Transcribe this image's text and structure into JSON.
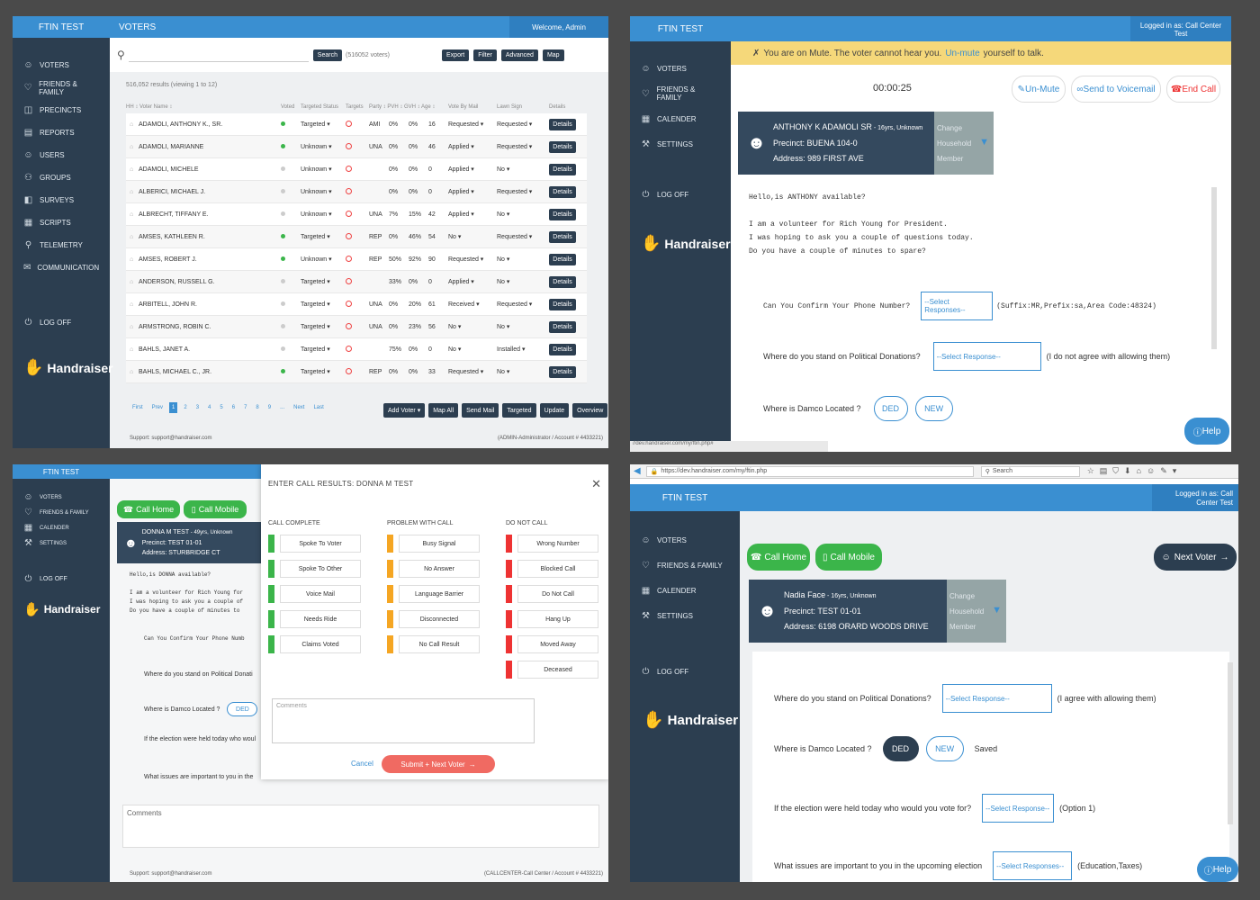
{
  "p1": {
    "brand": "FTIN TEST",
    "title": "VOTERS",
    "welcome": "Welcome, Admin",
    "nav": [
      {
        "label": "VOTERS",
        "icon": "voters-icon",
        "glyph": "☺"
      },
      {
        "label": "FRIENDS & FAMILY",
        "icon": "heart-icon",
        "glyph": "♡"
      },
      {
        "label": "PRECINCTS",
        "icon": "precincts-icon",
        "glyph": "◫"
      },
      {
        "label": "REPORTS",
        "icon": "reports-icon",
        "glyph": "▤"
      },
      {
        "label": "USERS",
        "icon": "user-icon",
        "glyph": "☺"
      },
      {
        "label": "GROUPS",
        "icon": "groups-icon",
        "glyph": "⚇"
      },
      {
        "label": "SURVEYS",
        "icon": "surveys-icon",
        "glyph": "◧"
      },
      {
        "label": "SCRIPTS",
        "icon": "scripts-icon",
        "glyph": "▦"
      },
      {
        "label": "TELEMETRY",
        "icon": "telemetry-icon",
        "glyph": "⚲"
      },
      {
        "label": "COMMUNICATION",
        "icon": "communication-icon",
        "glyph": "✉"
      }
    ],
    "logoff": "LOG OFF",
    "logo": "Handraiser",
    "search_btn": "Search",
    "voter_count": "(516052 voters)",
    "actions": [
      "Export",
      "Filter",
      "Advanced",
      "Map"
    ],
    "results_text": "516,052 results (viewing 1 to 12)",
    "columns": [
      "HH ↕ Voter Name ↕",
      "Voted",
      "Targeted Status",
      "Targets",
      "Party ↕ PVH ↕ GVH ↕ Age ↕",
      "Vote By Mail",
      "Lawn Sign",
      "Details"
    ],
    "rows": [
      {
        "name": "ADAMOLI, ANTHONY K., SR.",
        "voted": "green",
        "status": "Targeted",
        "party": "AMI",
        "pvh": "0%",
        "gvh": "0%",
        "age": "16",
        "vbm": "Requested",
        "lawn": "Requested"
      },
      {
        "name": "ADAMOLI, MARIANNE",
        "voted": "green",
        "status": "Unknown",
        "party": "UNA",
        "pvh": "0%",
        "gvh": "0%",
        "age": "46",
        "vbm": "Applied",
        "lawn": "Requested"
      },
      {
        "name": "ADAMOLI, MICHELE",
        "voted": "grey",
        "status": "Unknown",
        "party": "",
        "pvh": "0%",
        "gvh": "0%",
        "age": "0",
        "vbm": "Applied",
        "lawn": "No"
      },
      {
        "name": "ALBERICI, MICHAEL J.",
        "voted": "grey",
        "status": "Unknown",
        "party": "",
        "pvh": "0%",
        "gvh": "0%",
        "age": "0",
        "vbm": "Applied",
        "lawn": "Requested"
      },
      {
        "name": "ALBRECHT, TIFFANY E.",
        "voted": "grey",
        "status": "Unknown",
        "party": "UNA",
        "pvh": "7%",
        "gvh": "15%",
        "age": "42",
        "vbm": "Applied",
        "lawn": "No"
      },
      {
        "name": "AMSES, KATHLEEN R.",
        "voted": "green",
        "status": "Targeted",
        "party": "REP",
        "pvh": "0%",
        "gvh": "46%",
        "age": "54",
        "vbm": "No",
        "lawn": "Requested"
      },
      {
        "name": "AMSES, ROBERT J.",
        "voted": "green",
        "status": "Unknown",
        "party": "REP",
        "pvh": "50%",
        "gvh": "92%",
        "age": "90",
        "vbm": "Requested",
        "lawn": "No"
      },
      {
        "name": "ANDERSON, RUSSELL G.",
        "voted": "grey",
        "status": "Targeted",
        "party": "",
        "pvh": "33%",
        "gvh": "0%",
        "age": "0",
        "vbm": "Applied",
        "lawn": "No"
      },
      {
        "name": "ARBITELL, JOHN R.",
        "voted": "grey",
        "status": "Targeted",
        "party": "UNA",
        "pvh": "0%",
        "gvh": "20%",
        "age": "61",
        "vbm": "Received",
        "lawn": "Requested"
      },
      {
        "name": "ARMSTRONG, ROBIN C.",
        "voted": "grey",
        "status": "Targeted",
        "party": "UNA",
        "pvh": "0%",
        "gvh": "23%",
        "age": "56",
        "vbm": "No",
        "lawn": "No"
      },
      {
        "name": "BAHLS, JANET A.",
        "voted": "grey",
        "status": "Targeted",
        "party": "",
        "pvh": "75%",
        "gvh": "0%",
        "age": "0",
        "vbm": "No",
        "lawn": "Installed"
      },
      {
        "name": "BAHLS, MICHAEL C., JR.",
        "voted": "green",
        "status": "Targeted",
        "party": "REP",
        "pvh": "0%",
        "gvh": "0%",
        "age": "33",
        "vbm": "Requested",
        "lawn": "No"
      }
    ],
    "details_label": "Details",
    "pagination": [
      "First",
      "Prev",
      "1",
      "2",
      "3",
      "4",
      "5",
      "6",
      "7",
      "8",
      "9",
      "...",
      "Next",
      "Last"
    ],
    "bottom_actions": [
      "Add Voter ▾",
      "Map All",
      "Send Mail",
      "Targeted",
      "Update",
      "Overview"
    ],
    "support": "Support: support@handraiser.com",
    "account": "(ADMIN-Administrator / Account # 4433221)"
  },
  "p2": {
    "brand": "FTIN TEST",
    "logged_in": "Logged in as: Call Center Test",
    "nav": [
      {
        "label": "VOTERS",
        "icon": "voters-icon",
        "glyph": "☺"
      },
      {
        "label": "FRIENDS & FAMILY",
        "icon": "heart-icon",
        "glyph": "♡"
      },
      {
        "label": "CALENDER",
        "icon": "calendar-icon",
        "glyph": "▦"
      },
      {
        "label": "SETTINGS",
        "icon": "wrench-icon",
        "glyph": "⚒"
      }
    ],
    "logoff": "LOG OFF",
    "logo": "Handraiser",
    "mute_msg": "You are on Mute. The voter cannot hear you.",
    "unmute_link": "Un-mute",
    "mute_tail": "yourself to talk.",
    "timer": "00:00:25",
    "unmute_btn": "Un-Mute",
    "voicemail_btn": "Send to Voicemail",
    "endcall_btn": "End Call",
    "voter_name": "ANTHONY K ADAMOLI SR",
    "voter_meta": " - 16yrs, Unknown",
    "precinct": "Precinct: BUENA 104-0",
    "address": "Address: 989 FIRST AVE",
    "household": [
      "Change",
      "Household",
      "Member"
    ],
    "script_lines": [
      "Hello,is ANTHONY available?",
      "",
      "I am a volunteer for Rich Young for President.",
      "I was hoping to ask you a couple of questions today.",
      "Do you have a couple of minutes to spare?"
    ],
    "q1": "Can You Confirm Your Phone Number?",
    "q1_select": "--Select Responses--",
    "q1_note": "(Suffix:MR,Prefix:sa,Area Code:48324)",
    "q2": "Where do you stand on Political Donations?",
    "q2_select": "--Select Response--",
    "q2_note": "(I do not agree with allowing them)",
    "q3": "Where is Damco Located ?",
    "q3_opts": [
      "DED",
      "NEW"
    ],
    "help": "Help",
    "url_hint": "//dev.handraiser.com/my/ftin.php#"
  },
  "p3": {
    "brand": "FTIN TEST",
    "nav": [
      {
        "label": "VOTERS",
        "icon": "voters-icon",
        "glyph": "☺"
      },
      {
        "label": "FRIENDS & FAMILY",
        "icon": "heart-icon",
        "glyph": "♡"
      },
      {
        "label": "CALENDER",
        "icon": "calendar-icon",
        "glyph": "▦"
      },
      {
        "label": "SETTINGS",
        "icon": "wrench-icon",
        "glyph": "⚒"
      }
    ],
    "logoff": "LOG OFF",
    "logo": "Handraiser",
    "call_home": "Call Home",
    "call_mobile": "Call Mobile",
    "voter_name": "DONNA M TEST",
    "voter_meta": " - 49yrs, Unknown",
    "precinct": "Precinct: TEST 01-01",
    "address": "Address: STURBRIDGE CT",
    "script_lines": [
      "Hello,is DONNA available?",
      "",
      "I am a volunteer for Rich Young for",
      "I was hoping to ask you a couple of",
      "Do you have a couple of minutes to"
    ],
    "q1": "Can You Confirm Your Phone Numb",
    "q2": "Where do you stand on Political Donati",
    "q3": "Where is Damco Located ?",
    "q3_opt": "DED",
    "q4": "If the election were held today who woul",
    "q5": "What issues are important to you in the",
    "comments_label": "Comments",
    "support": "Support: support@handraiser.com",
    "account": "(CALLCENTER-Call Center / Account # 4433221)",
    "modal": {
      "title": "ENTER CALL RESULTS: DONNA M TEST",
      "col_titles": [
        "CALL COMPLETE",
        "PROBLEM WITH CALL",
        "DO NOT CALL"
      ],
      "complete": [
        "Spoke To Voter",
        "Spoke To Other",
        "Voice Mail",
        "Needs Ride",
        "Claims Voted"
      ],
      "problem": [
        "Busy Signal",
        "No Answer",
        "Language Barrier",
        "Disconnected",
        "No Call Result"
      ],
      "dnc": [
        "Wrong Number",
        "Blocked Call",
        "Do Not Call",
        "Hang Up",
        "Moved Away",
        "Deceased"
      ],
      "comments_placeholder": "Comments",
      "cancel": "Cancel",
      "submit": "Submit + Next Voter"
    }
  },
  "p4": {
    "url": "https://dev.handraiser.com/my/ftin.php",
    "search_placeholder": "Search",
    "brand": "FTIN TEST",
    "logged_in": "Logged in as: Call Center Test",
    "nav": [
      {
        "label": "VOTERS",
        "icon": "voters-icon",
        "glyph": "☺"
      },
      {
        "label": "FRIENDS & FAMILY",
        "icon": "heart-icon",
        "glyph": "♡"
      },
      {
        "label": "CALENDER",
        "icon": "calendar-icon",
        "glyph": "▦"
      },
      {
        "label": "SETTINGS",
        "icon": "wrench-icon",
        "glyph": "⚒"
      }
    ],
    "logoff": "LOG OFF",
    "logo": "Handraiser",
    "call_home": "Call Home",
    "call_mobile": "Call Mobile",
    "next_voter": "Next Voter",
    "voter_name": "Nadia Face",
    "voter_meta": " - 16yrs, Unknown",
    "precinct": "Precinct: TEST 01-01",
    "address": "Address: 6198 ORARD WOODS DRIVE",
    "household": [
      "Change",
      "Household",
      "Member"
    ],
    "q2": "Where do you stand on Political Donations?",
    "q2_select": "--Select Response--",
    "q2_note": "(I agree with allowing them)",
    "q3": "Where is Damco Located ?",
    "q3_opts": [
      "DED",
      "NEW"
    ],
    "q3_saved": "Saved",
    "q4": "If the election were held today who would you vote for?",
    "q4_select": "--Select Response--",
    "q4_note": "(Option 1)",
    "q5": "What issues are important to you in the upcoming election",
    "q5_select": "--Select Responses--",
    "q5_note": "(Education,Taxes)",
    "help": "Help"
  }
}
